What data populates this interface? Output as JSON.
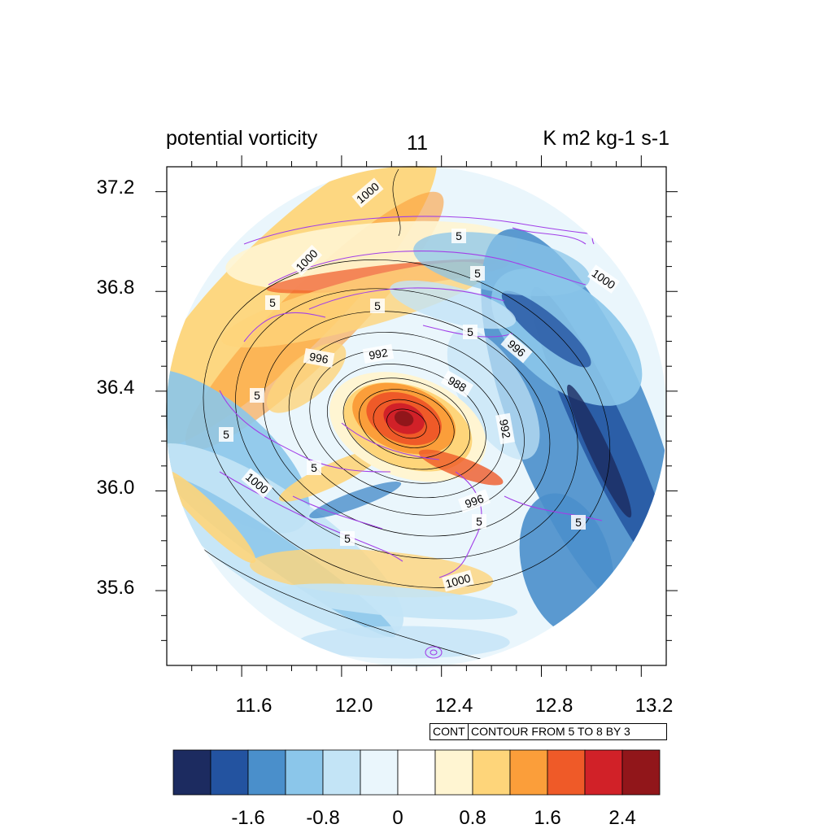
{
  "chart_data": {
    "type": "heatmap",
    "title_left": "potential vorticity",
    "title_center": "11",
    "title_right": "K m2 kg-1 s-1",
    "xlim": [
      11.3,
      13.3
    ],
    "ylim": [
      35.3,
      37.3
    ],
    "x_ticks": [
      "11.6",
      "12.0",
      "12.4",
      "12.8",
      "13.2"
    ],
    "y_ticks": [
      "37.2",
      "36.8",
      "36.4",
      "36.0",
      "35.6"
    ],
    "colorbar": {
      "levels": [
        -2.4,
        -2.0,
        -1.6,
        -1.2,
        -0.8,
        -0.4,
        0,
        0.4,
        0.8,
        1.2,
        1.6,
        2.0,
        2.4
      ],
      "labels": [
        "-1.6",
        "-0.8",
        "0",
        "0.8",
        "1.6",
        "2.4"
      ],
      "colors": [
        "#1c2b60",
        "#2353a0",
        "#4a8fcb",
        "#8bc6ea",
        "#c3e4f6",
        "#eaf6fc",
        "#ffffff",
        "#fff5d2",
        "#fed57a",
        "#fb9e3a",
        "#ef5a28",
        "#d12128",
        "#91161a"
      ]
    },
    "pressure_contours": {
      "levels": [
        988,
        992,
        996,
        1000
      ],
      "labels": [
        "1000",
        "1000",
        "1000",
        "1000",
        "1000",
        "996",
        "996",
        "992",
        "988",
        "992",
        "996"
      ],
      "center": [
        12.25,
        36.29
      ]
    },
    "pv_contours": {
      "labels": [
        "5",
        "5",
        "5",
        "5",
        "5",
        "5",
        "5",
        "5",
        "5",
        "5",
        "5"
      ],
      "info_boxes": [
        "CONT",
        "CONTOUR FROM 5 TO 8 BY 3"
      ]
    },
    "vortex_center": [
      12.25,
      36.29
    ]
  }
}
